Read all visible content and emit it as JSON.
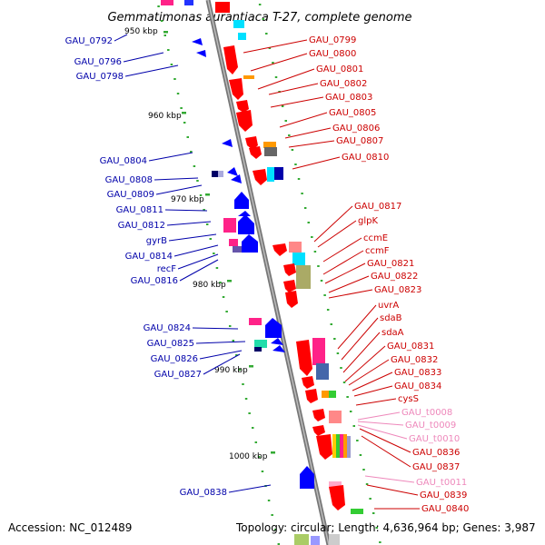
{
  "title": "Gemmatimonas aurantiaca T-27, complete genome",
  "accession": "Accession: NC_012489",
  "topology": "Topology: circular; Length: 4,636,964 bp; Genes: 3,987",
  "ticks": [
    "950 kbp",
    "960 kbp",
    "970 kbp",
    "980 kbp",
    "990 kbp",
    "1000 kbp"
  ],
  "right_labels": [
    {
      "text": "GAU_0799",
      "color": "#cc0000"
    },
    {
      "text": "GAU_0800",
      "color": "#cc0000"
    },
    {
      "text": "GAU_0801",
      "color": "#cc0000"
    },
    {
      "text": "GAU_0802",
      "color": "#cc0000"
    },
    {
      "text": "GAU_0803",
      "color": "#cc0000"
    },
    {
      "text": "GAU_0805",
      "color": "#cc0000"
    },
    {
      "text": "GAU_0806",
      "color": "#cc0000"
    },
    {
      "text": "GAU_0807",
      "color": "#cc0000"
    },
    {
      "text": "GAU_0810",
      "color": "#cc0000"
    },
    {
      "text": "GAU_0817",
      "color": "#cc0000"
    },
    {
      "text": "glpK",
      "color": "#cc0000"
    },
    {
      "text": "ccmE",
      "color": "#cc0000"
    },
    {
      "text": "ccmF",
      "color": "#cc0000"
    },
    {
      "text": "GAU_0821",
      "color": "#cc0000"
    },
    {
      "text": "GAU_0822",
      "color": "#cc0000"
    },
    {
      "text": "GAU_0823",
      "color": "#cc0000"
    },
    {
      "text": "uvrA",
      "color": "#cc0000"
    },
    {
      "text": "sdaB",
      "color": "#cc0000"
    },
    {
      "text": "sdaA",
      "color": "#cc0000"
    },
    {
      "text": "GAU_0831",
      "color": "#cc0000"
    },
    {
      "text": "GAU_0832",
      "color": "#cc0000"
    },
    {
      "text": "GAU_0833",
      "color": "#cc0000"
    },
    {
      "text": "GAU_0834",
      "color": "#cc0000"
    },
    {
      "text": "cysS",
      "color": "#cc0000"
    },
    {
      "text": "GAU_t0008",
      "color": "#ee88bb"
    },
    {
      "text": "GAU_t0009",
      "color": "#ee88bb"
    },
    {
      "text": "GAU_t0010",
      "color": "#ee88bb"
    },
    {
      "text": "GAU_0836",
      "color": "#cc0000"
    },
    {
      "text": "GAU_0837",
      "color": "#cc0000"
    },
    {
      "text": "GAU_t0011",
      "color": "#ee88bb"
    },
    {
      "text": "GAU_0839",
      "color": "#cc0000"
    },
    {
      "text": "GAU_0840",
      "color": "#cc0000"
    }
  ],
  "left_labels": [
    {
      "text": "GAU_0792",
      "color": "#0000aa"
    },
    {
      "text": "GAU_0796",
      "color": "#0000aa"
    },
    {
      "text": "GAU_0798",
      "color": "#0000aa"
    },
    {
      "text": "GAU_0804",
      "color": "#0000aa"
    },
    {
      "text": "GAU_0808",
      "color": "#0000aa"
    },
    {
      "text": "GAU_0809",
      "color": "#0000aa"
    },
    {
      "text": "GAU_0811",
      "color": "#0000aa"
    },
    {
      "text": "GAU_0812",
      "color": "#0000aa"
    },
    {
      "text": "gyrB",
      "color": "#0000aa"
    },
    {
      "text": "GAU_0814",
      "color": "#0000aa"
    },
    {
      "text": "recF",
      "color": "#0000aa"
    },
    {
      "text": "GAU_0816",
      "color": "#0000aa"
    },
    {
      "text": "GAU_0824",
      "color": "#0000aa"
    },
    {
      "text": "GAU_0825",
      "color": "#0000aa"
    },
    {
      "text": "GAU_0826",
      "color": "#0000aa"
    },
    {
      "text": "GAU_0827",
      "color": "#0000aa"
    },
    {
      "text": "GAU_0838",
      "color": "#0000aa"
    }
  ],
  "colors": {
    "forward_strand": "#ff0000",
    "reverse_strand": "#0000ff",
    "trna": "#ee88bb",
    "backbone": "#888888",
    "tick": "#33aa33"
  }
}
